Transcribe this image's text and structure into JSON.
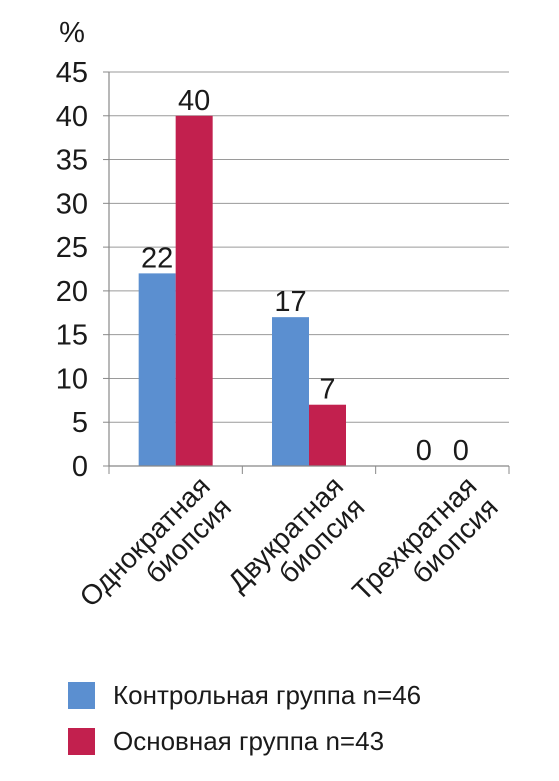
{
  "chart_data": {
    "type": "bar",
    "unit_label": "%",
    "categories": [
      [
        "Однократная",
        "биопсия"
      ],
      [
        "Двукратная",
        "биопсия"
      ],
      [
        "Трехкратная",
        "биопсия"
      ]
    ],
    "series": [
      {
        "name": "Контрольная группа n=46",
        "values": [
          22,
          17,
          0
        ],
        "color": "#5b8fd0"
      },
      {
        "name": "Основная группа n=43",
        "values": [
          40,
          7,
          0
        ],
        "color": "#c2204e"
      }
    ],
    "ylim": [
      0,
      45
    ],
    "yticks": [
      0,
      5,
      10,
      15,
      20,
      25,
      30,
      35,
      40,
      45
    ],
    "grid": true,
    "data_labels": true,
    "legend_position": "bottom"
  }
}
